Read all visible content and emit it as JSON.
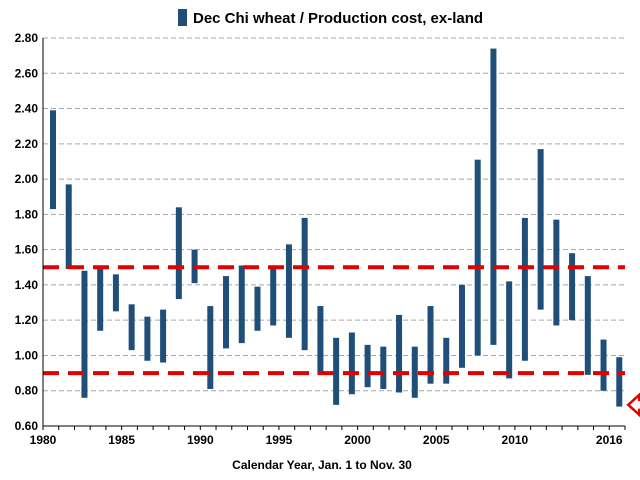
{
  "chart_data": {
    "type": "range-bar",
    "title": "",
    "legend": "Dec Chi wheat / Production cost, ex-land",
    "legend_position": "top-center",
    "xlabel": "Calendar Year, Jan. 1 to Nov. 30",
    "ylabel": "",
    "ylim": [
      0.6,
      2.8
    ],
    "y_ticks": [
      "0.60",
      "0.80",
      "1.00",
      "1.20",
      "1.40",
      "1.60",
      "1.80",
      "2.00",
      "2.20",
      "2.40",
      "2.60",
      "2.80"
    ],
    "xlim": [
      1980,
      2017
    ],
    "x_ticks": [
      "1980",
      "1985",
      "1990",
      "1995",
      "2000",
      "2005",
      "2010",
      "2016"
    ],
    "grid": true,
    "series": [
      {
        "name": "Dec Chi wheat / Production cost, ex-land",
        "color": "#1f4e79",
        "ranges": [
          {
            "year": 1980,
            "low": 1.83,
            "high": 2.39
          },
          {
            "year": 1981,
            "low": 1.49,
            "high": 1.97
          },
          {
            "year": 1982,
            "low": 0.76,
            "high": 1.48
          },
          {
            "year": 1983,
            "low": 1.14,
            "high": 1.49
          },
          {
            "year": 1984,
            "low": 1.25,
            "high": 1.46
          },
          {
            "year": 1985,
            "low": 1.03,
            "high": 1.29
          },
          {
            "year": 1986,
            "low": 0.97,
            "high": 1.22
          },
          {
            "year": 1987,
            "low": 0.96,
            "high": 1.26
          },
          {
            "year": 1988,
            "low": 1.32,
            "high": 1.84
          },
          {
            "year": 1989,
            "low": 1.41,
            "high": 1.6
          },
          {
            "year": 1990,
            "low": 0.81,
            "high": 1.28
          },
          {
            "year": 1991,
            "low": 1.04,
            "high": 1.45
          },
          {
            "year": 1992,
            "low": 1.07,
            "high": 1.51
          },
          {
            "year": 1993,
            "low": 1.14,
            "high": 1.39
          },
          {
            "year": 1994,
            "low": 1.17,
            "high": 1.51
          },
          {
            "year": 1995,
            "low": 1.1,
            "high": 1.63
          },
          {
            "year": 1996,
            "low": 1.03,
            "high": 1.78
          },
          {
            "year": 1997,
            "low": 0.89,
            "high": 1.28
          },
          {
            "year": 1998,
            "low": 0.72,
            "high": 1.1
          },
          {
            "year": 1999,
            "low": 0.78,
            "high": 1.13
          },
          {
            "year": 2000,
            "low": 0.82,
            "high": 1.06
          },
          {
            "year": 2001,
            "low": 0.81,
            "high": 1.05
          },
          {
            "year": 2002,
            "low": 0.79,
            "high": 1.23
          },
          {
            "year": 2003,
            "low": 0.76,
            "high": 1.05
          },
          {
            "year": 2004,
            "low": 0.84,
            "high": 1.28
          },
          {
            "year": 2005,
            "low": 0.84,
            "high": 1.1
          },
          {
            "year": 2006,
            "low": 0.93,
            "high": 1.4
          },
          {
            "year": 2007,
            "low": 1.0,
            "high": 2.11
          },
          {
            "year": 2008,
            "low": 1.06,
            "high": 2.74
          },
          {
            "year": 2009,
            "low": 0.87,
            "high": 1.42
          },
          {
            "year": 2010,
            "low": 0.97,
            "high": 1.78
          },
          {
            "year": 2011,
            "low": 1.26,
            "high": 2.17
          },
          {
            "year": 2012,
            "low": 1.17,
            "high": 1.77
          },
          {
            "year": 2013,
            "low": 1.2,
            "high": 1.58
          },
          {
            "year": 2014,
            "low": 0.89,
            "high": 1.45
          },
          {
            "year": 2015,
            "low": 0.8,
            "high": 1.09
          },
          {
            "year": 2016,
            "low": 0.71,
            "high": 0.99
          }
        ]
      }
    ],
    "reference_lines": [
      {
        "value": 1.5,
        "color": "#e00000",
        "style": "dashed"
      },
      {
        "value": 0.9,
        "color": "#e00000",
        "style": "dashed"
      }
    ],
    "annotations": [
      {
        "type": "arrow",
        "direction": "left",
        "points_to_year": 2016,
        "points_to_value": 0.72,
        "color": "#e00000"
      }
    ]
  }
}
